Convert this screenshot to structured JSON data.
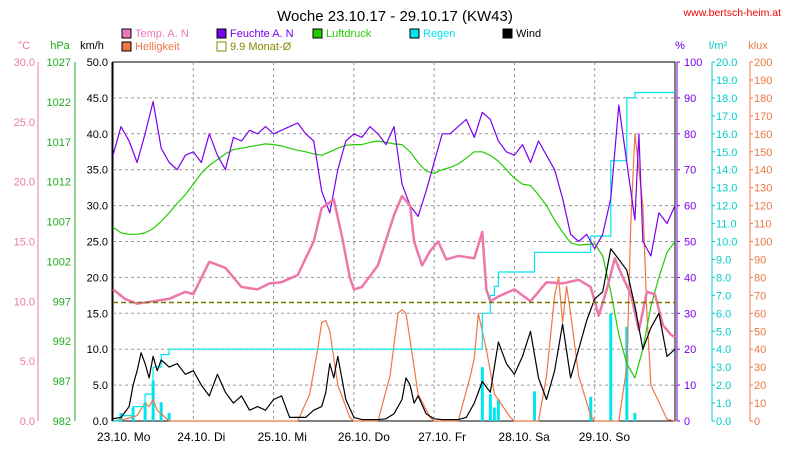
{
  "chart_data": {
    "type": "line",
    "title": "Woche 23.10.17 - 29.10.17 (KW43)",
    "source": "www.bertsch-heim.at",
    "legend": [
      {
        "label": "Temp. A. N",
        "color": "#ee77bb",
        "style": "filled"
      },
      {
        "label": "Feuchte A. N",
        "color": "#7a00ee",
        "style": "filled"
      },
      {
        "label": "Luftdruck",
        "color": "#22cc00",
        "style": "filled"
      },
      {
        "label": "Regen",
        "color": "#00e5ee",
        "style": "filled"
      },
      {
        "label": "Wind",
        "color": "#000000",
        "style": "filled"
      },
      {
        "label": "Helligkeit",
        "color": "#ee7744",
        "style": "filled"
      },
      {
        "label": "9.9 Monat-Ø",
        "color": "#888800",
        "style": "outline"
      }
    ],
    "axes": {
      "temp": {
        "unit": "°C",
        "color": "#ee77aa",
        "min": 0,
        "max": 30,
        "ticks": [
          "30.0",
          "25.0",
          "20.0",
          "15.0",
          "10.0",
          "5.0",
          "0.0"
        ]
      },
      "pressure": {
        "unit": "hPa",
        "color": "#22aa22",
        "min": 982,
        "max": 1032,
        "ticks": [
          "1027",
          "1022",
          "1017",
          "1012",
          "1007",
          "1002",
          "997",
          "992",
          "987",
          "982"
        ]
      },
      "wind": {
        "unit": "km/h",
        "color": "#000000",
        "min": 0,
        "max": 50,
        "ticks": [
          "50.0",
          "45.0",
          "40.0",
          "35.0",
          "30.0",
          "25.0",
          "20.0",
          "15.0",
          "10.0",
          "5.0",
          "0.0"
        ]
      },
      "humidity": {
        "unit": "%",
        "color": "#7a00ee",
        "min": 0,
        "max": 100,
        "ticks": [
          "100",
          "90",
          "80",
          "70",
          "60",
          "50",
          "40",
          "30",
          "20",
          "10",
          "0"
        ]
      },
      "rain": {
        "unit": "l/m²",
        "color": "#00cccc",
        "min": 0,
        "max": 20,
        "ticks": [
          "20.0",
          "19.0",
          "18.0",
          "17.0",
          "16.0",
          "15.0",
          "14.0",
          "13.0",
          "12.0",
          "11.0",
          "10.0",
          "9.0",
          "8.0",
          "7.0",
          "6.0",
          "5.0",
          "4.0",
          "3.0",
          "2.0",
          "1.0",
          "0.0"
        ]
      },
      "light": {
        "unit": "klux",
        "color": "#ee7744",
        "min": 0,
        "max": 200,
        "ticks": [
          "200",
          "190",
          "180",
          "170",
          "160",
          "150",
          "140",
          "130",
          "120",
          "110",
          "100",
          "90",
          "80",
          "70",
          "60",
          "50",
          "40",
          "30",
          "20",
          "10",
          "0"
        ]
      }
    },
    "x_labels": [
      "23.10. Mo",
      "24.10. Di",
      "25.10. Mi",
      "26.10. Do",
      "27.10. Fr",
      "28.10. Sa",
      "29.10. So"
    ],
    "x_range": [
      0,
      7
    ],
    "monthly_avg_temp": 9.9,
    "series": [
      {
        "name": "Temp. A. N",
        "axis": "temp",
        "color": "#ee77aa",
        "x": [
          0,
          0.15,
          0.3,
          0.5,
          0.7,
          0.9,
          1.0,
          1.2,
          1.4,
          1.6,
          1.8,
          1.95,
          2.1,
          2.3,
          2.5,
          2.6,
          2.75,
          2.85,
          2.95,
          3.0,
          3.1,
          3.3,
          3.5,
          3.6,
          3.7,
          3.75,
          3.85,
          3.95,
          4.05,
          4.15,
          4.3,
          4.5,
          4.6,
          4.65,
          4.7,
          4.8,
          5.0,
          5.2,
          5.4,
          5.6,
          5.8,
          5.95,
          6.05,
          6.15,
          6.25,
          6.35,
          6.45,
          6.55,
          6.65,
          6.75,
          6.85,
          6.95,
          7.0
        ],
        "values": [
          11.0,
          10.2,
          9.8,
          10.0,
          10.2,
          10.8,
          10.6,
          13.3,
          12.8,
          11.2,
          11.0,
          11.5,
          11.6,
          12.2,
          15.0,
          17.8,
          18.5,
          15.5,
          12.0,
          11.0,
          11.2,
          13.0,
          17.2,
          18.8,
          18.0,
          15.0,
          13.0,
          14.2,
          15.0,
          13.5,
          13.8,
          13.6,
          15.8,
          11.0,
          10.0,
          10.4,
          11.0,
          10.0,
          11.6,
          11.5,
          11.8,
          11.2,
          8.8,
          11.0,
          13.6,
          12.0,
          10.6,
          7.6,
          10.8,
          10.6,
          8.0,
          7.2,
          7.0
        ]
      },
      {
        "name": "Feuchte A. N",
        "axis": "humidity",
        "color": "#7a00ee",
        "x": [
          0,
          0.1,
          0.2,
          0.3,
          0.4,
          0.5,
          0.6,
          0.7,
          0.8,
          0.9,
          1.0,
          1.1,
          1.2,
          1.3,
          1.4,
          1.5,
          1.6,
          1.7,
          1.8,
          1.9,
          2.0,
          2.1,
          2.2,
          2.3,
          2.4,
          2.5,
          2.6,
          2.7,
          2.8,
          2.9,
          3.0,
          3.1,
          3.2,
          3.3,
          3.4,
          3.5,
          3.6,
          3.7,
          3.8,
          3.9,
          4.0,
          4.1,
          4.2,
          4.3,
          4.4,
          4.5,
          4.6,
          4.7,
          4.8,
          4.9,
          5.0,
          5.1,
          5.2,
          5.3,
          5.4,
          5.5,
          5.6,
          5.7,
          5.8,
          5.9,
          6.0,
          6.1,
          6.2,
          6.3,
          6.35,
          6.4,
          6.5,
          6.55,
          6.6,
          6.7,
          6.8,
          6.9,
          7.0
        ],
        "values": [
          74,
          82,
          78,
          72,
          80,
          89,
          76,
          72,
          70,
          74,
          75,
          72,
          80,
          74,
          70,
          79,
          78,
          81,
          80,
          82,
          80,
          81,
          82,
          83,
          80,
          78,
          64,
          58,
          70,
          78,
          80,
          79,
          82,
          80,
          77,
          82,
          66,
          60,
          57,
          64,
          72,
          80,
          80,
          82,
          84,
          79,
          86,
          84,
          78,
          75,
          74,
          77,
          72,
          78,
          74,
          70,
          62,
          52,
          50,
          52,
          48,
          52,
          62,
          88,
          80,
          72,
          56,
          80,
          50,
          46,
          58,
          55,
          60
        ]
      },
      {
        "name": "Luftdruck",
        "axis": "pressure",
        "color": "#22cc00",
        "x": [
          0,
          0.1,
          0.2,
          0.3,
          0.4,
          0.5,
          0.6,
          0.7,
          0.8,
          0.9,
          1.0,
          1.1,
          1.2,
          1.3,
          1.4,
          1.5,
          1.6,
          1.7,
          1.8,
          1.9,
          2.0,
          2.1,
          2.2,
          2.3,
          2.4,
          2.5,
          2.6,
          2.7,
          2.8,
          2.9,
          3.0,
          3.1,
          3.2,
          3.3,
          3.4,
          3.5,
          3.6,
          3.7,
          3.8,
          3.9,
          4.0,
          4.1,
          4.2,
          4.3,
          4.4,
          4.5,
          4.6,
          4.7,
          4.8,
          4.9,
          5.0,
          5.1,
          5.2,
          5.3,
          5.4,
          5.5,
          5.6,
          5.7,
          5.8,
          5.9,
          6.0,
          6.1,
          6.2,
          6.3,
          6.4,
          6.5,
          6.6,
          6.7,
          6.8,
          6.9,
          7.0
        ],
        "values": [
          1009,
          1008.2,
          1008,
          1008,
          1008.2,
          1008.8,
          1009.8,
          1011,
          1012.3,
          1013.5,
          1015,
          1016.5,
          1017.6,
          1018.4,
          1019.2,
          1019.8,
          1020,
          1020.2,
          1020.4,
          1020.6,
          1020.5,
          1020.3,
          1020,
          1019.7,
          1019.5,
          1019.2,
          1019,
          1019.5,
          1020,
          1020.4,
          1020.5,
          1020.5,
          1020.8,
          1021,
          1020.8,
          1020.6,
          1020.5,
          1019.5,
          1018,
          1016.8,
          1016.5,
          1017,
          1017.3,
          1017.8,
          1018.6,
          1019.5,
          1019.5,
          1019,
          1018.2,
          1017,
          1015.8,
          1015,
          1014.8,
          1013.5,
          1012,
          1010,
          1008.3,
          1006.8,
          1006.5,
          1006.6,
          1006.7,
          1005,
          1000,
          994,
          990,
          988,
          992,
          998,
          1002,
          1005.5,
          1007
        ]
      },
      {
        "name": "Regen",
        "axis": "rain",
        "color": "#00e5ee",
        "x": [
          0,
          0.1,
          0.25,
          0.4,
          0.5,
          0.6,
          0.7,
          2.5,
          4.3,
          4.5,
          4.6,
          4.7,
          4.75,
          4.8,
          5.2,
          5.25,
          5.9,
          5.95,
          6.2,
          6.4,
          6.5,
          7.0
        ],
        "values": [
          0,
          0.3,
          0.8,
          1.5,
          3.0,
          3.7,
          4.0,
          4.0,
          4.0,
          4.0,
          6.0,
          7.0,
          7.5,
          8.3,
          8.3,
          9.4,
          9.4,
          10.3,
          14.5,
          18.0,
          18.3,
          18.3
        ],
        "step": true
      },
      {
        "name": "Wind",
        "axis": "wind",
        "color": "#000000",
        "x": [
          0,
          0.1,
          0.2,
          0.25,
          0.3,
          0.35,
          0.4,
          0.45,
          0.5,
          0.55,
          0.6,
          0.7,
          0.8,
          0.9,
          1.0,
          1.1,
          1.2,
          1.3,
          1.4,
          1.5,
          1.6,
          1.7,
          1.8,
          1.9,
          2.0,
          2.1,
          2.2,
          2.3,
          2.4,
          2.5,
          2.6,
          2.65,
          2.7,
          2.75,
          2.8,
          2.9,
          3.0,
          3.1,
          3.2,
          3.3,
          3.4,
          3.5,
          3.6,
          3.65,
          3.7,
          3.75,
          3.8,
          3.9,
          4.0,
          4.1,
          4.2,
          4.3,
          4.4,
          4.5,
          4.6,
          4.7,
          4.8,
          4.9,
          5.0,
          5.1,
          5.2,
          5.3,
          5.4,
          5.5,
          5.6,
          5.7,
          5.8,
          5.9,
          6.0,
          6.1,
          6.2,
          6.3,
          6.4,
          6.5,
          6.6,
          6.7,
          6.8,
          6.9,
          7.0
        ],
        "values": [
          0.3,
          0.5,
          2,
          5,
          7,
          9.5,
          8,
          6,
          9,
          7,
          8.5,
          7.5,
          8,
          6.5,
          7,
          5,
          3.5,
          6.5,
          4,
          2.5,
          3.5,
          1.5,
          2,
          1.5,
          3,
          3.5,
          0.5,
          0.5,
          0.5,
          1.5,
          2,
          4,
          8,
          6,
          9,
          3,
          0.5,
          0.2,
          0.2,
          0.2,
          0.3,
          1,
          3,
          6,
          5,
          2.5,
          3.5,
          1,
          0.3,
          0.2,
          0.2,
          0.2,
          0.5,
          2.5,
          5.5,
          4,
          11,
          8,
          6.5,
          9,
          12.5,
          6,
          3,
          7,
          13.5,
          6,
          10,
          14,
          17,
          18,
          24,
          22.5,
          21,
          16,
          10,
          13,
          15,
          9,
          10
        ]
      },
      {
        "name": "Helligkeit",
        "axis": "light",
        "color": "#ee7744",
        "x": [
          0,
          0.15,
          0.3,
          0.4,
          0.45,
          0.5,
          0.55,
          0.6,
          0.7,
          2.3,
          2.45,
          2.55,
          2.6,
          2.65,
          2.7,
          2.8,
          2.95,
          3.0,
          3.3,
          3.45,
          3.55,
          3.6,
          3.65,
          3.7,
          3.8,
          3.95,
          4.0,
          4.3,
          4.45,
          4.5,
          4.55,
          4.6,
          4.65,
          4.75,
          4.95,
          5.0,
          5.3,
          5.4,
          5.5,
          5.55,
          5.6,
          5.65,
          5.7,
          5.8,
          5.95,
          6.0,
          6.3,
          6.4,
          6.45,
          6.5,
          6.55,
          6.6,
          6.65,
          6.7,
          6.9,
          7.0
        ],
        "values": [
          0,
          1,
          3,
          10,
          8,
          12,
          6,
          4,
          0,
          0,
          15,
          40,
          55,
          56,
          50,
          20,
          2,
          0,
          0,
          25,
          60,
          62,
          60,
          45,
          15,
          2,
          0,
          0,
          25,
          35,
          60,
          50,
          40,
          15,
          2,
          0,
          0,
          25,
          70,
          80,
          55,
          75,
          60,
          25,
          3,
          0,
          0,
          30,
          110,
          160,
          140,
          120,
          60,
          20,
          1,
          0
        ]
      }
    ]
  }
}
